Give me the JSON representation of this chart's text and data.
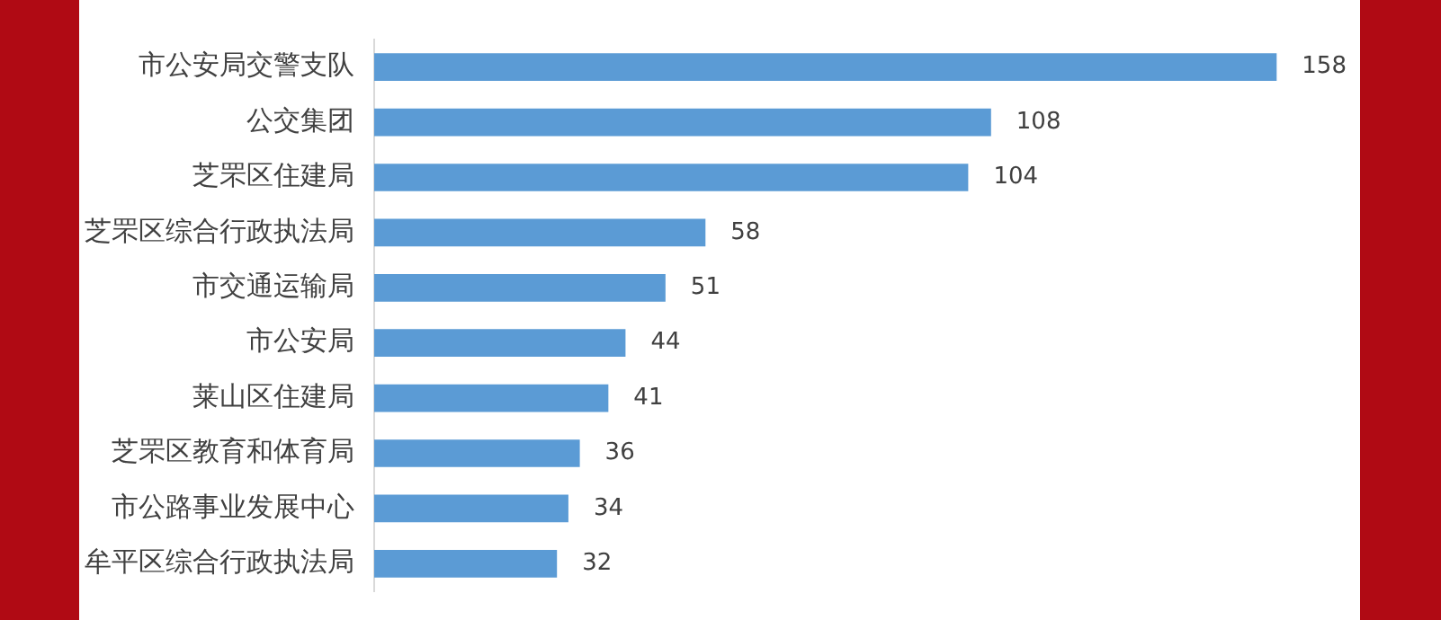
{
  "chart_data": {
    "type": "bar",
    "orientation": "horizontal",
    "categories": [
      "市公安局交警支队",
      "公交集团",
      "芝罘区住建局",
      "芝罘区综合行政执法局",
      "市交通运输局",
      "市公安局",
      "莱山区住建局",
      "芝罘区教育和体育局",
      "市公路事业发展中心",
      "牟平区综合行政执法局"
    ],
    "values": [
      158,
      108,
      104,
      58,
      51,
      44,
      41,
      36,
      34,
      32
    ],
    "color": "#5b9bd5",
    "data_labels": true,
    "legend": false,
    "tick_labels": "y"
  }
}
